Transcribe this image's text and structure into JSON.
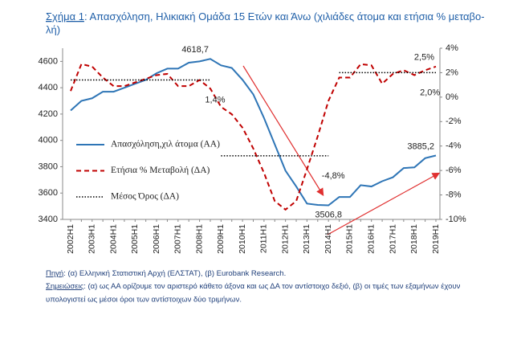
{
  "chart_data": {
    "type": "line",
    "title": [
      "Σχήμα 1",
      ": Απασχόληση, Ηλικιακή Ομάδα 15 Ετών και Άνω (χιλιάδες άτομα και ετήσια % μεταβο-",
      "λή)"
    ],
    "categories": [
      "2002H1",
      null,
      "2003H1",
      null,
      "2004H1",
      null,
      "2005H1",
      null,
      "2006H1",
      null,
      "2007H1",
      null,
      "2008H1",
      null,
      "2009H1",
      null,
      "2010H1",
      null,
      "2011H1",
      null,
      "2012H1",
      null,
      "2013H1",
      null,
      "2014H1",
      null,
      "2015H1",
      null,
      "2016H1",
      null,
      "2017H1",
      null,
      "2018H1",
      null,
      "2019H1"
    ],
    "series": [
      {
        "name": "Απασχόληση,χιλ άτομα (ΑΑ)",
        "color": "#2e75b6",
        "style": "solid",
        "values": [
          4227,
          4300,
          4320,
          4370,
          4370,
          4400,
          4430,
          4460,
          4510,
          4545,
          4545,
          4590,
          4600,
          4618.7,
          4570,
          4550,
          4460,
          4350,
          4170,
          3970,
          3770,
          3650,
          3520,
          3510,
          3506.8,
          3570,
          3570,
          3660,
          3650,
          3690,
          3720,
          3790,
          3795,
          3865,
          3885.2
        ],
        "value_labels": [
          null,
          null,
          null,
          null,
          null,
          null,
          null,
          null,
          null,
          null,
          null,
          null,
          null,
          "4618,7",
          null,
          null,
          null,
          null,
          null,
          null,
          null,
          null,
          null,
          null,
          "3506,8",
          null,
          null,
          null,
          null,
          null,
          null,
          null,
          null,
          null,
          "3885,2"
        ]
      },
      {
        "name": "Ετήσια % Μεταβολή (ΔΑ)",
        "color": "#c00000",
        "style": "dashed",
        "axis": "y2",
        "values": [
          0.5,
          2.7,
          2.5,
          1.6,
          0.9,
          0.9,
          1.2,
          1.5,
          1.8,
          1.9,
          0.9,
          0.9,
          1.4,
          0.7,
          -0.8,
          -1.4,
          -2.5,
          -4.2,
          -6.2,
          -8.5,
          -9.2,
          -8.5,
          -5.9,
          -3.2,
          -0.3,
          1.6,
          1.6,
          2.7,
          2.6,
          1.1,
          1.9,
          2.2,
          1.8,
          2.2,
          2.5
        ],
        "value_labels": [
          null,
          null,
          null,
          null,
          null,
          null,
          null,
          null,
          null,
          null,
          null,
          null,
          null,
          null,
          null,
          null,
          null,
          null,
          null,
          null,
          null,
          null,
          null,
          null,
          null,
          null,
          null,
          null,
          null,
          null,
          null,
          null,
          null,
          null,
          "2,5%"
        ]
      },
      {
        "name": "Μέσος Όρος (ΔΑ)",
        "color": "#000000",
        "style": "dotted",
        "axis": "y2",
        "values": [
          1.4,
          1.4,
          1.4,
          1.4,
          1.4,
          1.4,
          1.4,
          1.4,
          1.4,
          1.4,
          1.4,
          1.4,
          1.4,
          1.4,
          -4.8,
          -4.8,
          -4.8,
          -4.8,
          -4.8,
          -4.8,
          -4.8,
          -4.8,
          -4.8,
          -4.8,
          -4.8,
          2.0,
          2.0,
          2.0,
          2.0,
          2.0,
          2.0,
          2.0,
          2.0,
          2.0,
          2.0
        ],
        "value_labels": [
          null,
          null,
          null,
          null,
          null,
          null,
          null,
          null,
          null,
          null,
          null,
          null,
          null,
          "1,4%",
          null,
          null,
          null,
          null,
          null,
          null,
          null,
          null,
          null,
          null,
          "-4,8%",
          null,
          null,
          null,
          null,
          null,
          null,
          null,
          null,
          "2,0%",
          null
        ]
      }
    ],
    "ylim": [
      3400,
      4700
    ],
    "yticks": [
      3400,
      3600,
      3800,
      4000,
      4200,
      4400,
      4600
    ],
    "y2lim": [
      -10,
      4
    ],
    "y2ticks": [
      {
        "value": -10,
        "label": "-10%"
      },
      {
        "value": -8,
        "label": "-8%"
      },
      {
        "value": -6,
        "label": "-6%"
      },
      {
        "value": -4,
        "label": "-4%"
      },
      {
        "value": -2,
        "label": "-2%"
      },
      {
        "value": 0,
        "label": "0%"
      },
      {
        "value": 2,
        "label": "2%"
      },
      {
        "value": 4,
        "label": "4%"
      }
    ],
    "legend": "left",
    "grid": false
  },
  "notes": {
    "source_label": "Πηγή",
    "source_text": ": (α) Ελληνική Στατιστική Αρχή (ΕΛΣΤΑΤ), (β) Eurobank Research.",
    "notes_label": "Σημειώσεις",
    "notes_text": [
      ": (α) ως ΑΑ ορίζουμε τον αριστερό κάθετο άξονα και ως ΔΑ τον αντίστοιχο δεξιό, (β) οι τιμές των εξαμήνων έχουν",
      "υπολογιστεί ως μέσοι όροι των αντίστοιχων δύο τριμήνων."
    ]
  }
}
